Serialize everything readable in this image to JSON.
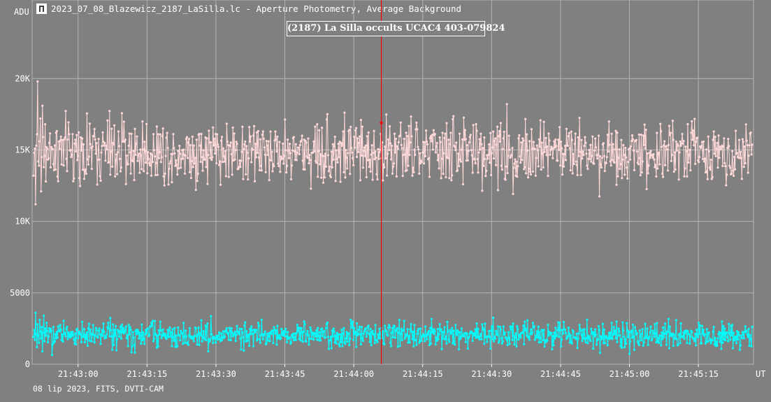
{
  "window": {
    "title": "2023_07_08_Blazewicz_2187_LaSilla.lc - Aperture Photometry, Average Background",
    "icon": "lightcurve-app-icon"
  },
  "footer": {
    "info": "08 lip 2023, FITS, DVTI-CAM"
  },
  "colors": {
    "background": "#808080",
    "grid": "#b4b4b4",
    "target_series": "#ffd8d8",
    "comparison_series": "#00ffff",
    "cursor": "#ff0000"
  },
  "chart_data": {
    "type": "line",
    "title": "(2187) La Silla occults UCAC4 403-079824",
    "xlabel": "UT",
    "ylabel": "ADU",
    "x_ticks": [
      "21:43:00",
      "21:43:15",
      "21:43:30",
      "21:43:45",
      "21:44:00",
      "21:44:15",
      "21:44:30",
      "21:44:45",
      "21:45:00",
      "21:45:15"
    ],
    "x_range": [
      "21:42:50",
      "21:45:27"
    ],
    "y_ticks": [
      {
        "value": 0,
        "label": "0"
      },
      {
        "value": 5000,
        "label": "5000"
      },
      {
        "value": 10000,
        "label": "10K"
      },
      {
        "value": 15000,
        "label": "15K"
      },
      {
        "value": 20000,
        "label": "20K"
      }
    ],
    "ylim": [
      0,
      25500
    ],
    "grid": true,
    "cursor_time": "21:44:06",
    "series": [
      {
        "name": "",
        "key": "target",
        "mean": 14900,
        "scatter": 1500,
        "sample_values": [
          13200,
          14800,
          15100,
          11200,
          15300,
          16100,
          19800,
          14200,
          13900,
          15600,
          17200,
          12100,
          14500,
          18100,
          15900,
          13800,
          14600,
          16800,
          12800,
          15200
        ],
        "num_points": 1050
      },
      {
        "name": "",
        "key": "comparison",
        "mean": 2050,
        "scatter": 600,
        "sample_values": [
          1900,
          2400,
          1700,
          3600,
          2100,
          1200,
          2800,
          2000,
          1500,
          3100,
          2300,
          1800,
          2600,
          900,
          2200,
          3400,
          1600,
          2500,
          2000,
          2900
        ],
        "num_points": 1050
      }
    ]
  }
}
